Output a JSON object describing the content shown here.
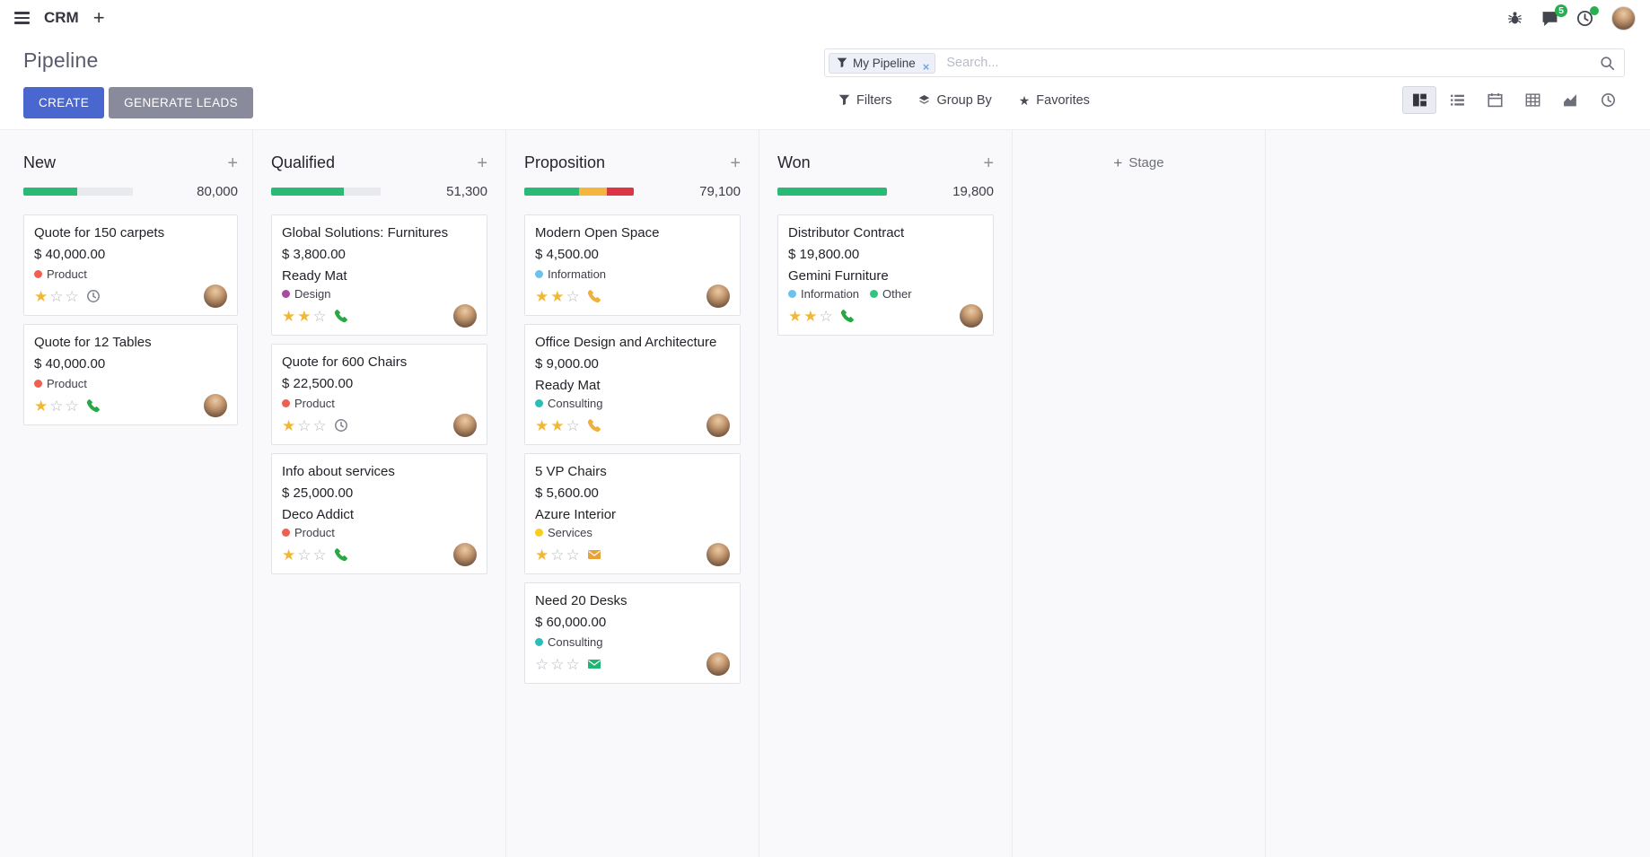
{
  "theme": {
    "primary": "#4a66cf",
    "secondary_button": "#8a8a9d",
    "badge_green": "#27ae4f",
    "progress_green": "#2bba75",
    "progress_yellow": "#f4b63e",
    "progress_red": "#dc3545",
    "progress_empty": "#e8eaef",
    "star_filled": "#efb839"
  },
  "navbar": {
    "app_name": "CRM",
    "plus_icon": "+",
    "messages_badge": "5"
  },
  "control_panel": {
    "title": "Pipeline",
    "create_label": "CREATE",
    "generate_leads_label": "GENERATE LEADS",
    "search": {
      "facet_label": "My Pipeline",
      "remove_icon": "×",
      "placeholder": "Search..."
    },
    "menus": {
      "filters": "Filters",
      "group_by": "Group By",
      "favorites": "Favorites"
    },
    "views": [
      "kanban",
      "list",
      "calendar",
      "pivot",
      "graph",
      "activity"
    ],
    "active_view": "kanban"
  },
  "board": {
    "add_icon": "+",
    "add_stage_label": "Stage",
    "columns": [
      {
        "name": "New",
        "total": "80,000",
        "progress": [
          {
            "color": "#2bba75",
            "pct": 49
          },
          {
            "color": "#e8eaef",
            "pct": 51
          }
        ],
        "cards": [
          {
            "title": "Quote for 150 carpets",
            "amount": "$ 40,000.00",
            "partner": "",
            "tags": [
              {
                "label": "Product",
                "color": "#f06050"
              }
            ],
            "stars": 1,
            "activity": {
              "type": "clock",
              "color": "#7e818c"
            }
          },
          {
            "title": "Quote for 12 Tables",
            "amount": "$ 40,000.00",
            "partner": "",
            "tags": [
              {
                "label": "Product",
                "color": "#f06050"
              }
            ],
            "stars": 1,
            "activity": {
              "type": "phone",
              "color": "#28a745"
            }
          }
        ]
      },
      {
        "name": "Qualified",
        "total": "51,300",
        "progress": [
          {
            "color": "#2bba75",
            "pct": 66
          },
          {
            "color": "#e8eaef",
            "pct": 34
          }
        ],
        "cards": [
          {
            "title": "Global Solutions: Furnitures",
            "amount": "$ 3,800.00",
            "partner": "Ready Mat",
            "tags": [
              {
                "label": "Design",
                "color": "#a84b9e"
              }
            ],
            "stars": 2,
            "activity": {
              "type": "phone",
              "color": "#28a745"
            }
          },
          {
            "title": "Quote for 600 Chairs",
            "amount": "$ 22,500.00",
            "partner": "",
            "tags": [
              {
                "label": "Product",
                "color": "#f06050"
              }
            ],
            "stars": 1,
            "activity": {
              "type": "clock",
              "color": "#7e818c"
            }
          },
          {
            "title": "Info about services",
            "amount": "$ 25,000.00",
            "partner": "Deco Addict",
            "tags": [
              {
                "label": "Product",
                "color": "#f06050"
              }
            ],
            "stars": 1,
            "activity": {
              "type": "phone",
              "color": "#28a745"
            }
          }
        ]
      },
      {
        "name": "Proposition",
        "total": "79,100",
        "progress": [
          {
            "color": "#2bba75",
            "pct": 50
          },
          {
            "color": "#f4b63e",
            "pct": 25
          },
          {
            "color": "#dc3545",
            "pct": 25
          }
        ],
        "cards": [
          {
            "title": "Modern Open Space",
            "amount": "$ 4,500.00",
            "partner": "",
            "tags": [
              {
                "label": "Information",
                "color": "#6cc1ed"
              }
            ],
            "stars": 2,
            "activity": {
              "type": "phone",
              "color": "#efaf3f"
            }
          },
          {
            "title": "Office Design and Architecture",
            "amount": "$ 9,000.00",
            "partner": "Ready Mat",
            "tags": [
              {
                "label": "Consulting",
                "color": "#2ebcbb"
              }
            ],
            "stars": 2,
            "activity": {
              "type": "phone",
              "color": "#efaf3f"
            }
          },
          {
            "title": "5 VP Chairs",
            "amount": "$ 5,600.00",
            "partner": "Azure Interior",
            "tags": [
              {
                "label": "Services",
                "color": "#f7cd1f"
              }
            ],
            "stars": 1,
            "activity": {
              "type": "envelope",
              "color": "#e7a33a"
            }
          },
          {
            "title": "Need 20 Desks",
            "amount": "$ 60,000.00",
            "partner": "",
            "tags": [
              {
                "label": "Consulting",
                "color": "#2ebcbb"
              }
            ],
            "stars": 0,
            "activity": {
              "type": "envelope",
              "color": "#21b573"
            }
          }
        ]
      },
      {
        "name": "Won",
        "total": "19,800",
        "progress": [
          {
            "color": "#2bba75",
            "pct": 100
          }
        ],
        "cards": [
          {
            "title": "Distributor Contract",
            "amount": "$ 19,800.00",
            "partner": "Gemini Furniture",
            "tags": [
              {
                "label": "Information",
                "color": "#6cc1ed"
              },
              {
                "label": "Other",
                "color": "#30c381"
              }
            ],
            "stars": 2,
            "activity": {
              "type": "phone",
              "color": "#28a745"
            }
          }
        ]
      }
    ]
  }
}
